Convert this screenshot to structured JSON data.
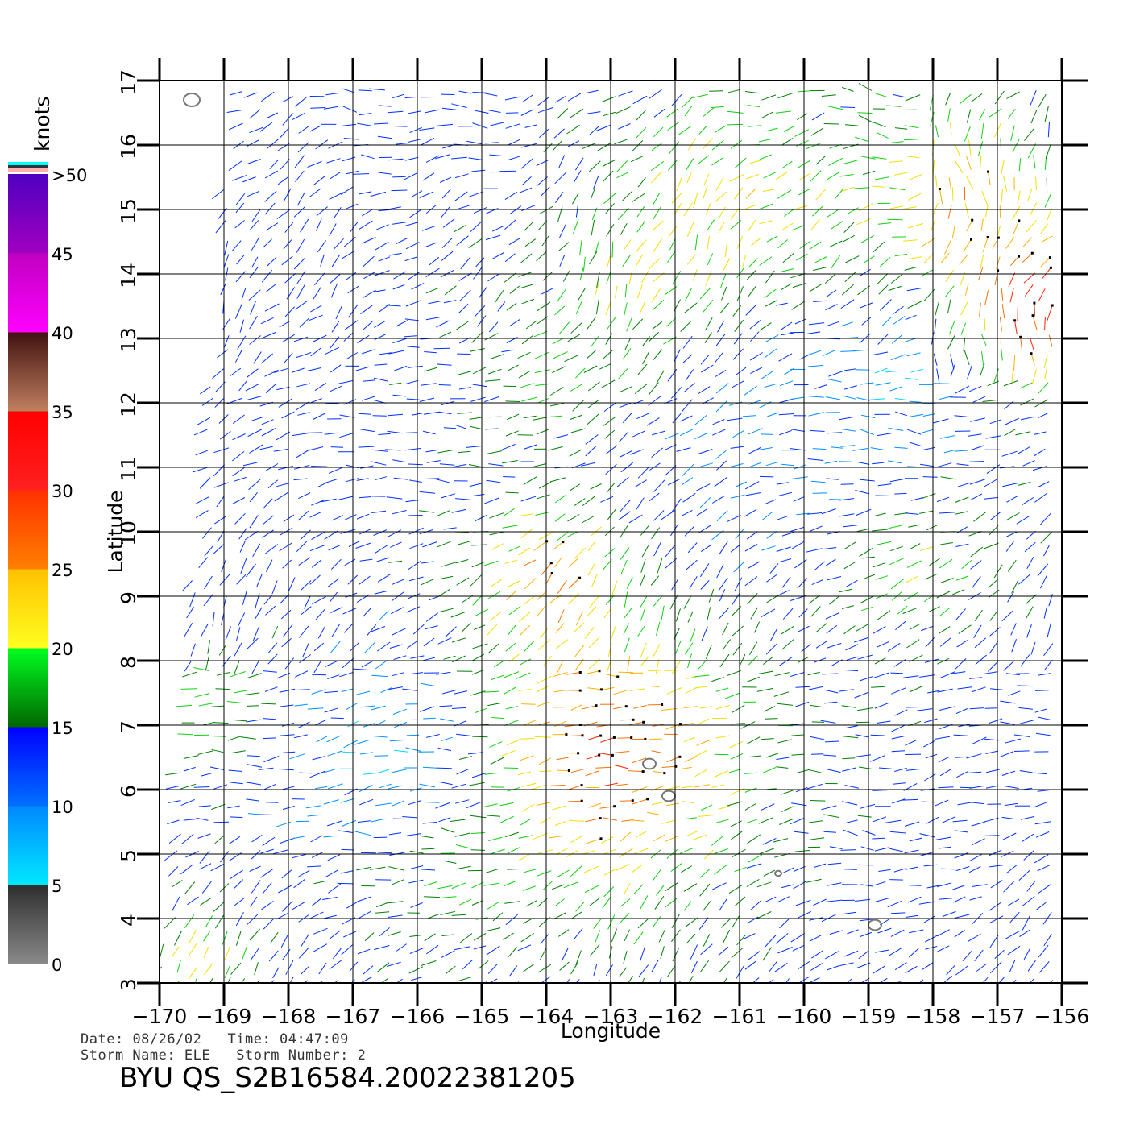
{
  "info": {
    "date_label": "Date:",
    "date_value": "08/26/02",
    "time_label": "Time:",
    "time_value": "04:47:09",
    "storm_name_label": "Storm Name:",
    "storm_name_value": "ELE",
    "storm_number_label": "Storm Number:",
    "storm_number_value": "2"
  },
  "footer_title": "BYU QS_S2B16584.20022381205",
  "chart_data": {
    "type": "wind-vector-map",
    "xlabel": "Longitude",
    "ylabel": "Latitude",
    "xlim": [
      -170,
      -156
    ],
    "ylim": [
      3,
      17
    ],
    "x_ticks": [
      -170,
      -169,
      -168,
      -167,
      -166,
      -165,
      -164,
      -163,
      -162,
      -161,
      -160,
      -159,
      -158,
      -157,
      -156
    ],
    "y_ticks": [
      3,
      4,
      5,
      6,
      7,
      8,
      9,
      10,
      11,
      12,
      13,
      14,
      15,
      16,
      17
    ],
    "grid": true,
    "colorbar": {
      "unit": "knots",
      "labels": [
        "0",
        "5",
        "10",
        "15",
        "20",
        "25",
        "30",
        "35",
        "40",
        "45",
        ">50"
      ],
      "bands": [
        {
          "from": 0,
          "to": 5,
          "colors": [
            "#8a8a8a",
            "#2e2e2e"
          ]
        },
        {
          "from": 5,
          "to": 10,
          "colors": [
            "#00e8ff",
            "#0088ff"
          ]
        },
        {
          "from": 10,
          "to": 15,
          "colors": [
            "#0070ff",
            "#0000ff"
          ]
        },
        {
          "from": 15,
          "to": 20,
          "colors": [
            "#006600",
            "#00ff20"
          ]
        },
        {
          "from": 20,
          "to": 25,
          "colors": [
            "#ffff20",
            "#ffc000"
          ]
        },
        {
          "from": 25,
          "to": 30,
          "colors": [
            "#ff8000",
            "#ff3000"
          ]
        },
        {
          "from": 30,
          "to": 35,
          "colors": [
            "#ff2020",
            "#ff0000"
          ]
        },
        {
          "from": 35,
          "to": 40,
          "colors": [
            "#c08060",
            "#401010"
          ]
        },
        {
          "from": 40,
          "to": 45,
          "colors": [
            "#ff00ff",
            "#c000c0"
          ]
        },
        {
          "from": 45,
          "to": 50,
          "colors": [
            "#a000c0",
            "#5000c0"
          ]
        }
      ],
      "top_stripes": [
        "#00ffff",
        "#333333",
        "#ffb0b0"
      ]
    },
    "islands": [
      {
        "lon": -169.5,
        "lat": 16.7
      },
      {
        "lon": -162.4,
        "lat": 6.4
      },
      {
        "lon": -162.1,
        "lat": 5.9
      },
      {
        "lon": -160.4,
        "lat": 4.7
      },
      {
        "lon": -158.9,
        "lat": 3.9
      }
    ],
    "wind_field": {
      "spacing_deg": 0.25,
      "speed_regions": [
        {
          "lon": -163.0,
          "lat": 6.6,
          "radius": 2.2,
          "speed": 28
        },
        {
          "lon": -163.8,
          "lat": 9.4,
          "radius": 1.0,
          "speed": 27
        },
        {
          "lon": -156.6,
          "lat": 13.6,
          "radius": 1.2,
          "speed": 33
        },
        {
          "lon": -162.5,
          "lat": 13.7,
          "radius": 1.0,
          "speed": 25
        },
        {
          "lon": -161.0,
          "lat": 15.0,
          "radius": 2.0,
          "speed": 22
        },
        {
          "lon": -157.5,
          "lat": 15.2,
          "radius": 1.5,
          "speed": 24
        },
        {
          "lon": -158.3,
          "lat": 9.5,
          "radius": 1.2,
          "speed": 20
        },
        {
          "lon": -165.6,
          "lat": 5.2,
          "radius": 1.5,
          "speed": 19
        },
        {
          "lon": -169.0,
          "lat": 7.2,
          "radius": 1.0,
          "speed": 19
        },
        {
          "lon": -169.3,
          "lat": 3.6,
          "radius": 0.7,
          "speed": 22
        },
        {
          "lon": -163.5,
          "lat": 12.5,
          "radius": 1.5,
          "speed": 18
        },
        {
          "lon": -166.5,
          "lat": 6.5,
          "radius": 1.5,
          "speed": 8
        },
        {
          "lon": -158.5,
          "lat": 12.3,
          "radius": 1.2,
          "speed": 8
        },
        {
          "lon": -160.5,
          "lat": 11.5,
          "radius": 2.0,
          "speed": 10
        }
      ]
    }
  }
}
